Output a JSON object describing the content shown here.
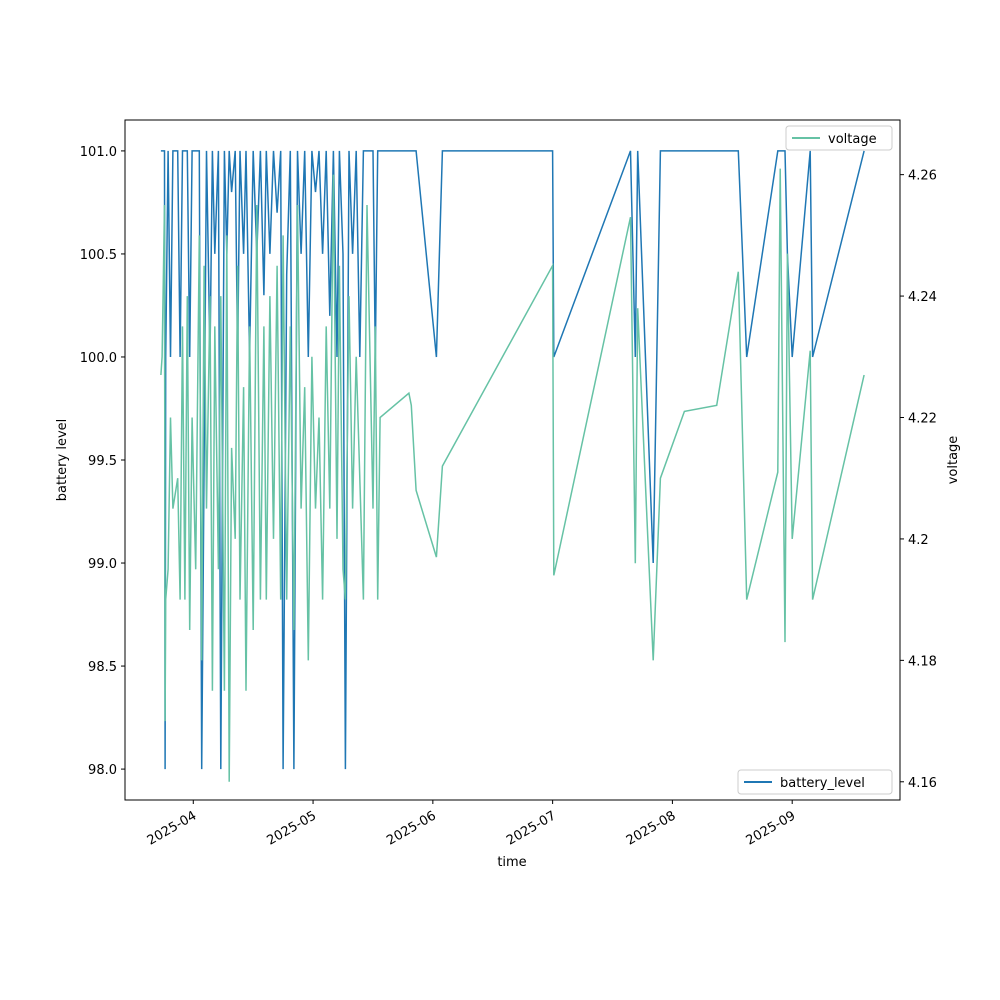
{
  "chart_data": {
    "type": "line",
    "x_label": "time",
    "y_label": "battery level",
    "y2_label": "voltage",
    "x": [
      3.73,
      3.74,
      3.76,
      3.765,
      3.77,
      3.79,
      3.81,
      3.83,
      3.87,
      3.89,
      3.91,
      3.93,
      3.95,
      3.97,
      3.99,
      4.02,
      4.05,
      4.07,
      4.09,
      4.11,
      4.14,
      4.16,
      4.18,
      4.21,
      4.23,
      4.26,
      4.28,
      4.3,
      4.32,
      4.35,
      4.37,
      4.39,
      4.42,
      4.44,
      4.47,
      4.5,
      4.53,
      4.56,
      4.59,
      4.61,
      4.64,
      4.67,
      4.7,
      4.73,
      4.75,
      4.78,
      4.81,
      4.84,
      4.87,
      4.9,
      4.93,
      4.96,
      4.99,
      5.02,
      5.05,
      5.08,
      5.11,
      5.14,
      5.17,
      5.2,
      5.22,
      5.25,
      5.27,
      5.3,
      5.33,
      5.36,
      5.39,
      5.42,
      5.45,
      5.5,
      5.52,
      5.54,
      5.56,
      5.8,
      5.82,
      5.86,
      6.03,
      6.08,
      7.0,
      7.01,
      7.65,
      7.69,
      7.71,
      7.84,
      7.9,
      8.1,
      8.37,
      8.55,
      8.62,
      8.88,
      8.9,
      8.94,
      8.96,
      9.0,
      9.15,
      9.17,
      9.6
    ],
    "series": [
      {
        "name": "battery_level",
        "color": "#1f77b4",
        "axis": "y",
        "values": [
          101,
          101,
          101,
          98,
          100,
          101,
          100,
          101,
          101,
          100,
          101,
          101,
          101,
          100,
          101,
          101,
          101,
          98,
          99.5,
          101,
          100,
          101,
          100.5,
          101,
          98,
          101,
          100.5,
          101,
          100.8,
          101,
          100,
          101,
          100.5,
          101,
          100,
          101,
          100.5,
          101,
          100.3,
          101,
          100.5,
          101,
          100.7,
          101,
          98,
          100.4,
          101,
          98,
          101,
          100.5,
          101,
          100,
          101,
          100.8,
          101,
          100.5,
          101,
          100.2,
          101,
          100,
          101,
          100.5,
          98,
          101,
          100.5,
          101,
          100,
          101,
          101,
          101,
          100,
          101,
          101,
          101,
          101,
          101,
          100,
          101,
          101,
          100,
          101,
          100,
          101,
          99,
          101,
          101,
          101,
          101,
          100,
          101,
          101,
          101,
          100.5,
          100,
          101,
          100,
          101
        ]
      },
      {
        "name": "voltage",
        "color": "#66c2a5",
        "axis": "y2",
        "values": [
          4.227,
          4.23,
          4.255,
          4.17,
          4.19,
          4.195,
          4.22,
          4.205,
          4.21,
          4.19,
          4.235,
          4.19,
          4.24,
          4.185,
          4.22,
          4.195,
          4.25,
          4.18,
          4.245,
          4.205,
          4.24,
          4.175,
          4.235,
          4.195,
          4.24,
          4.175,
          4.25,
          4.16,
          4.215,
          4.2,
          4.245,
          4.19,
          4.225,
          4.175,
          4.235,
          4.185,
          4.255,
          4.19,
          4.235,
          4.19,
          4.24,
          4.2,
          4.245,
          4.19,
          4.25,
          4.19,
          4.235,
          4.185,
          4.255,
          4.205,
          4.225,
          4.18,
          4.23,
          4.205,
          4.22,
          4.19,
          4.235,
          4.205,
          4.26,
          4.2,
          4.245,
          4.195,
          4.19,
          4.24,
          4.205,
          4.23,
          4.21,
          4.19,
          4.255,
          4.205,
          4.235,
          4.19,
          4.22,
          4.224,
          4.222,
          4.208,
          4.197,
          4.212,
          4.245,
          4.194,
          4.253,
          4.196,
          4.238,
          4.18,
          4.21,
          4.221,
          4.222,
          4.244,
          4.19,
          4.211,
          4.261,
          4.183,
          4.247,
          4.2,
          4.231,
          4.19,
          4.227
        ]
      }
    ],
    "xlim": [
      3.43,
      9.9
    ],
    "xticks": [
      {
        "value": 4,
        "label": "2025-04"
      },
      {
        "value": 5,
        "label": "2025-05"
      },
      {
        "value": 6,
        "label": "2025-06"
      },
      {
        "value": 7,
        "label": "2025-07"
      },
      {
        "value": 8,
        "label": "2025-08"
      },
      {
        "value": 9,
        "label": "2025-09"
      }
    ],
    "ylim": [
      97.85,
      101.15
    ],
    "yticks": [
      {
        "value": 98,
        "label": "98.0"
      },
      {
        "value": 98.5,
        "label": "98.5"
      },
      {
        "value": 99,
        "label": "99.0"
      },
      {
        "value": 99.5,
        "label": "99.5"
      },
      {
        "value": 100,
        "label": "100.0"
      },
      {
        "value": 100.5,
        "label": "100.5"
      },
      {
        "value": 101,
        "label": "101.0"
      }
    ],
    "y2lim": [
      4.157,
      4.269
    ],
    "y2ticks": [
      4.16,
      4.18,
      4.2,
      4.22,
      4.24,
      4.26
    ],
    "legend_corners": {
      "y": "lower right",
      "y2": "upper right"
    }
  }
}
